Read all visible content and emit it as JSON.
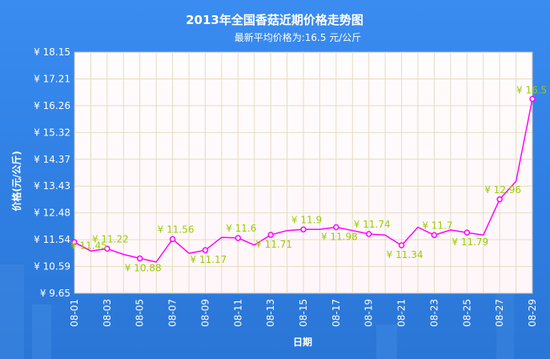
{
  "chart_data": {
    "type": "line",
    "title": "2013年全国香菇近期价格走势图",
    "subtitle": "最新平均价格为:16.5 元/公斤",
    "xlabel": "日期",
    "ylabel": "价格(元/公斤)",
    "ylim": [
      9.65,
      18.15
    ],
    "yticks": [
      "¥ 18.15",
      "¥ 17.21",
      "¥ 16.26",
      "¥ 15.32",
      "¥ 14.37",
      "¥ 13.43",
      "¥ 12.48",
      "¥ 11.54",
      "¥ 10.59",
      "¥ 9.65"
    ],
    "xticks": [
      "08-01",
      "08-03",
      "08-05",
      "08-07",
      "08-09",
      "08-11",
      "08-13",
      "08-15",
      "08-17",
      "08-19",
      "08-21",
      "08-23",
      "08-25",
      "08-27",
      "08-29"
    ],
    "grid": true,
    "colors": {
      "line": "#ff00ff",
      "data_label": "#99cc00",
      "plot_bg": "#fffdfd",
      "grid": "#e4dcc0"
    },
    "series": [
      {
        "x": [
          "08-01",
          "08-02",
          "08-03",
          "08-04",
          "08-05",
          "08-06",
          "08-07",
          "08-08",
          "08-09",
          "08-10",
          "08-11",
          "08-12",
          "08-13",
          "08-14",
          "08-15",
          "08-16",
          "08-17",
          "08-18",
          "08-19",
          "08-20",
          "08-21",
          "08-22",
          "08-23",
          "08-24",
          "08-25",
          "08-26",
          "08-27",
          "08-28",
          "08-29"
        ],
        "values": [
          11.45,
          11.14,
          11.22,
          11.02,
          10.88,
          10.75,
          11.56,
          11.06,
          11.17,
          11.62,
          11.6,
          11.35,
          11.71,
          11.86,
          11.9,
          11.9,
          11.98,
          11.86,
          11.74,
          11.7,
          11.34,
          11.98,
          11.7,
          11.88,
          11.79,
          11.7,
          12.96,
          13.6,
          16.5
        ],
        "markers": [
          "08-01",
          "08-03",
          "08-05",
          "08-07",
          "08-09",
          "08-11",
          "08-13",
          "08-15",
          "08-17",
          "08-19",
          "08-21",
          "08-23",
          "08-25",
          "08-27",
          "08-29"
        ],
        "data_labels": [
          {
            "x": "08-01",
            "text": "¥ 11.45"
          },
          {
            "x": "08-03",
            "text": "¥ 11.22"
          },
          {
            "x": "08-05",
            "text": "¥ 10.88"
          },
          {
            "x": "08-07",
            "text": "¥ 11.56"
          },
          {
            "x": "08-09",
            "text": "¥ 11.17"
          },
          {
            "x": "08-11",
            "text": "¥ 11.6"
          },
          {
            "x": "08-13",
            "text": "¥ 11.71"
          },
          {
            "x": "08-15",
            "text": "¥ 11.9"
          },
          {
            "x": "08-17",
            "text": "¥ 11.98"
          },
          {
            "x": "08-19",
            "text": "¥ 11.74"
          },
          {
            "x": "08-21",
            "text": "¥ 11.34"
          },
          {
            "x": "08-23",
            "text": "¥ 11.7"
          },
          {
            "x": "08-25",
            "text": "¥ 11.79"
          },
          {
            "x": "08-27",
            "text": "¥ 12.96"
          },
          {
            "x": "08-29",
            "text": "¥ 16.5"
          }
        ]
      }
    ]
  }
}
